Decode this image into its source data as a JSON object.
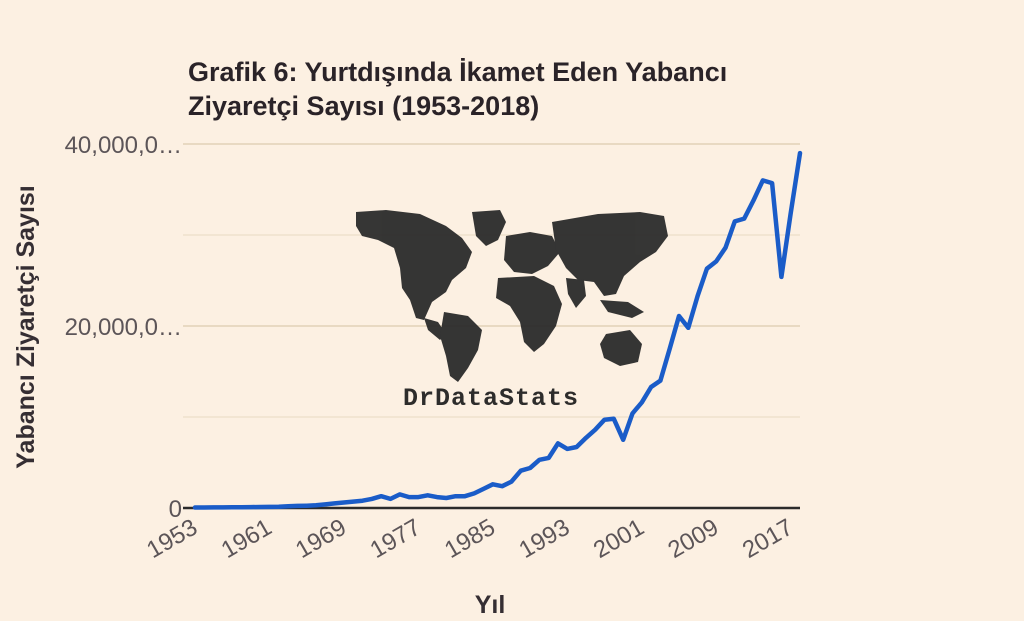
{
  "chart_data": {
    "type": "line",
    "title_lines": [
      "Grafik 6: Yurtdışında İkamet Eden Yabancı",
      "Ziyaretçi Sayısı (1953-2018)"
    ],
    "xlabel": "Yıl",
    "ylabel": "Yabancı Ziyaretçi Sayısı",
    "xlim": [
      1953,
      2018
    ],
    "ylim": [
      0,
      40000000
    ],
    "x_ticks": [
      1953,
      1961,
      1969,
      1977,
      1985,
      1993,
      2001,
      2009,
      2017
    ],
    "y_ticks": [
      {
        "value": 0,
        "label": "0"
      },
      {
        "value": 20000000,
        "label": "20,000,0…"
      },
      {
        "value": 40000000,
        "label": "40,000,0…"
      }
    ],
    "grid": true,
    "legend": "none",
    "series": [
      {
        "color": "#1a5cc8",
        "x": [
          1953,
          1954,
          1955,
          1956,
          1957,
          1958,
          1959,
          1960,
          1961,
          1962,
          1963,
          1964,
          1965,
          1966,
          1967,
          1968,
          1969,
          1970,
          1971,
          1972,
          1973,
          1974,
          1975,
          1976,
          1977,
          1978,
          1979,
          1980,
          1981,
          1982,
          1983,
          1984,
          1985,
          1986,
          1987,
          1988,
          1989,
          1990,
          1991,
          1992,
          1993,
          1994,
          1995,
          1996,
          1997,
          1998,
          1999,
          2000,
          2001,
          2002,
          2003,
          2004,
          2005,
          2006,
          2007,
          2008,
          2009,
          2010,
          2011,
          2012,
          2013,
          2014,
          2015,
          2016,
          2017,
          2018
        ],
        "y": [
          60000,
          60000,
          70000,
          70000,
          80000,
          90000,
          100000,
          110000,
          120000,
          130000,
          200000,
          230000,
          250000,
          300000,
          400000,
          500000,
          600000,
          700000,
          800000,
          1000000,
          1300000,
          1000000,
          1500000,
          1200000,
          1200000,
          1400000,
          1200000,
          1100000,
          1300000,
          1300000,
          1600000,
          2100000,
          2600000,
          2400000,
          2900000,
          4100000,
          4400000,
          5300000,
          5500000,
          7100000,
          6500000,
          6700000,
          7700000,
          8600000,
          9700000,
          9800000,
          7500000,
          10400000,
          11600000,
          13300000,
          14000000,
          17500000,
          21100000,
          19800000,
          23300000,
          26300000,
          27100000,
          28600000,
          31500000,
          31800000,
          33800000,
          36000000,
          35700000,
          25400000,
          32400000,
          39000000
        ]
      }
    ],
    "watermark": "DrDataStats"
  }
}
